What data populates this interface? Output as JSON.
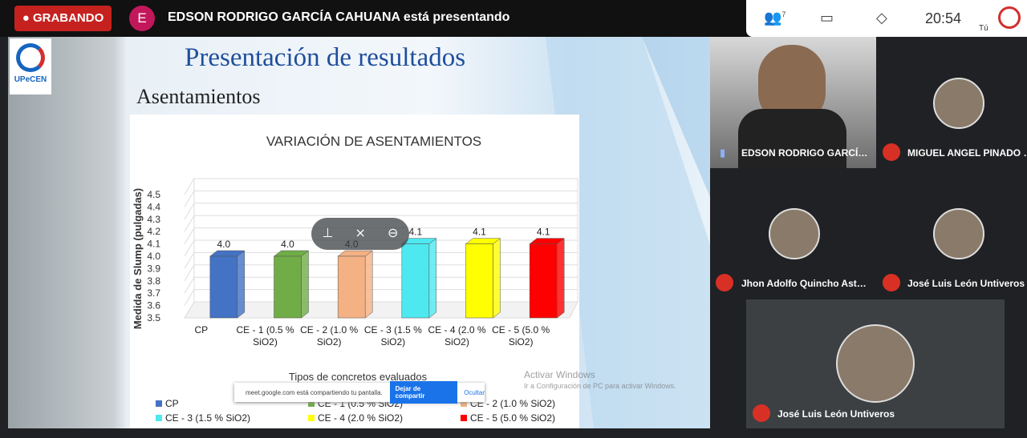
{
  "top_bar": {
    "recording": "GRABANDO",
    "avatar": "E",
    "presenter": "EDSON RODRIGO GARCÍA CAHUANA está presentando",
    "participant_count": "7",
    "time": "20:54",
    "you": "Tú"
  },
  "slide": {
    "logo": "UPeCEN",
    "title": "Presentación de resultados",
    "subtitle": "Asentamientos"
  },
  "chart_data": {
    "type": "bar",
    "title": "VARIACIÓN DE ASENTAMIENTOS",
    "y_label": "Medida de Slump (pulgadas)",
    "x_label": "Tipos de concretos evaluados",
    "categories": [
      "CP",
      "CE - 1 (0.5 % SiO2)",
      "CE - 2 (1.0 % SiO2)",
      "CE - 3 (1.5 % SiO2)",
      "CE - 4 (2.0 % SiO2)",
      "CE - 5 (5.0 % SiO2)"
    ],
    "values": [
      4.0,
      4.0,
      4.0,
      4.1,
      4.1,
      4.1
    ],
    "value_labels": [
      "4.0",
      "4.0",
      "4.0",
      "4.1",
      "4.1",
      "4.1"
    ],
    "colors": [
      "#4472c4",
      "#70ad47",
      "#f4b183",
      "#4ee8f0",
      "#ffff00",
      "#ff0000"
    ],
    "ylim": [
      3.5,
      4.5
    ],
    "yticks": [
      3.5,
      3.6,
      3.7,
      3.8,
      3.9,
      {
        "value": 4,
        "label": "4.0"
      },
      4.1,
      4.2,
      4.3,
      4.4,
      4.5
    ],
    "grid": true,
    "legend": "bottom"
  },
  "share_notice": {
    "text": "meet.google.com está compartiendo tu pantalla.",
    "stop": "Dejar de compartir",
    "hide": "Ocultar"
  },
  "watermark": {
    "line1": "Activar Windows",
    "line2": "Ir a Configuración de PC para activar Windows."
  },
  "participants": [
    "EDSON RODRIGO GARCÍ…",
    "MIGUEL ANGEL PINADO …",
    "Jhon Adolfo Quincho Ast…",
    "José Luis León Untiveros",
    "José Luis León Untiveros"
  ]
}
